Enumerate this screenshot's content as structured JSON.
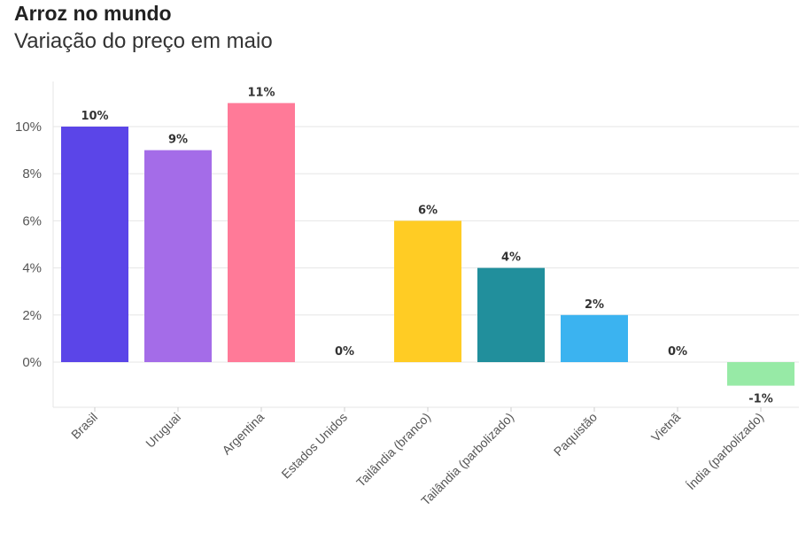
{
  "title": "Arroz no mundo",
  "subtitle": "Variação do preço em maio",
  "chart_data": {
    "type": "bar",
    "title": "Arroz no mundo",
    "subtitle": "Variação do preço em maio",
    "xlabel": "",
    "ylabel": "",
    "ylim": [
      -2,
      12
    ],
    "yticks": [
      0,
      2,
      4,
      6,
      8,
      10
    ],
    "ytick_labels": [
      "0%",
      "2%",
      "4%",
      "6%",
      "8%",
      "10%"
    ],
    "grid": true,
    "legend": "none",
    "categories": [
      "Brasil",
      "Uruguai",
      "Argentina",
      "Estados Unidos",
      "Tailândia (branco)",
      "Tailândia (parbolizado)",
      "Paquistão",
      "Vietnã",
      "Índia (parbolizado)"
    ],
    "values": [
      10,
      9,
      11,
      0,
      6,
      4,
      2,
      0,
      -1
    ],
    "data_labels": [
      "10%",
      "9%",
      "11%",
      "0%",
      "6%",
      "4%",
      "2%",
      "0%",
      "-1%"
    ],
    "colors": [
      "#5b45e8",
      "#a46ce8",
      "#ff7a98",
      "#ffffff",
      "#ffcc24",
      "#218f9c",
      "#3bb3f0",
      "#ffffff",
      "#97eaa6"
    ]
  }
}
